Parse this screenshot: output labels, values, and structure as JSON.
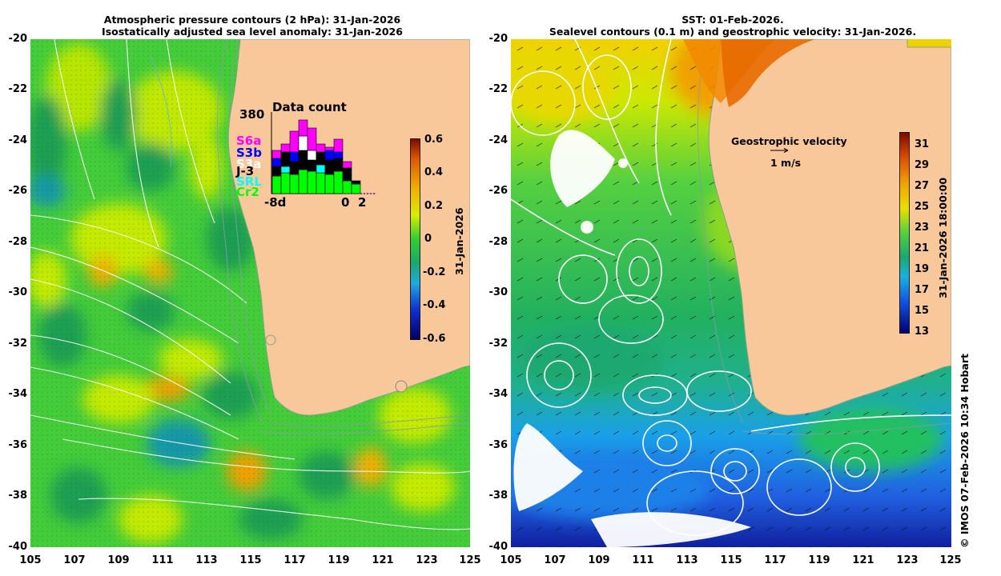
{
  "left_panel": {
    "title_line1": "Atmospheric pressure contours (2 hPa): 31-Jan-2026",
    "title_line2": "Isostatically adjusted sea level anomaly: 31-Jan-2026",
    "y_ticks": [
      "-20",
      "-22",
      "-24",
      "-26",
      "-28",
      "-30",
      "-32",
      "-34",
      "-36",
      "-38",
      "-40"
    ],
    "x_ticks": [
      "105",
      "107",
      "109",
      "111",
      "113",
      "115",
      "117",
      "119",
      "121",
      "123",
      "125"
    ],
    "colorbar": {
      "ticks": [
        "0.6",
        "0.4",
        "0.2",
        "0",
        "-0.2",
        "-0.4",
        "-0.6"
      ],
      "label": "31-Jan-2026"
    },
    "data_count": {
      "title": "Data count",
      "max_label": "380",
      "x_left": "-8d",
      "x_zero": "0",
      "x_right": "2",
      "satellites": [
        {
          "name": "S6a",
          "color": "#ff00ff"
        },
        {
          "name": "S3b",
          "color": "#0000ff"
        },
        {
          "name": "S3a",
          "color": "#ffffff"
        },
        {
          "name": "J-3",
          "color": "#000000"
        },
        {
          "name": "SRL",
          "color": "#00ffff"
        },
        {
          "name": "Cr2",
          "color": "#00ff00"
        }
      ]
    }
  },
  "right_panel": {
    "title_line1": "SST: 01-Feb-2026.",
    "title_line2": "Sealevel contours (0.1 m) and geostrophic velocity: 31-Jan-2026.",
    "y_ticks": [
      "-20",
      "-22",
      "-24",
      "-26",
      "-28",
      "-30",
      "-32",
      "-34",
      "-36",
      "-38",
      "-40"
    ],
    "x_ticks": [
      "105",
      "107",
      "109",
      "111",
      "113",
      "115",
      "117",
      "119",
      "121",
      "123",
      "125"
    ],
    "velocity_legend_title": "Geostrophic velocity",
    "velocity_legend_scale": "1 m/s",
    "colorbar": {
      "ticks": [
        "31",
        "29",
        "27",
        "25",
        "23",
        "21",
        "19",
        "17",
        "15",
        "13"
      ],
      "label": "31-Jan-2026 18:00:00"
    }
  },
  "credit": "© IMOS 07-Feb-2026 10:34 Hobart",
  "colors": {
    "land": "#f9c89a",
    "sla_green": "#33cc33",
    "sla_yellow": "#ccee00",
    "sst_orange": "#ff9900",
    "sst_blue": "#0077ff"
  }
}
